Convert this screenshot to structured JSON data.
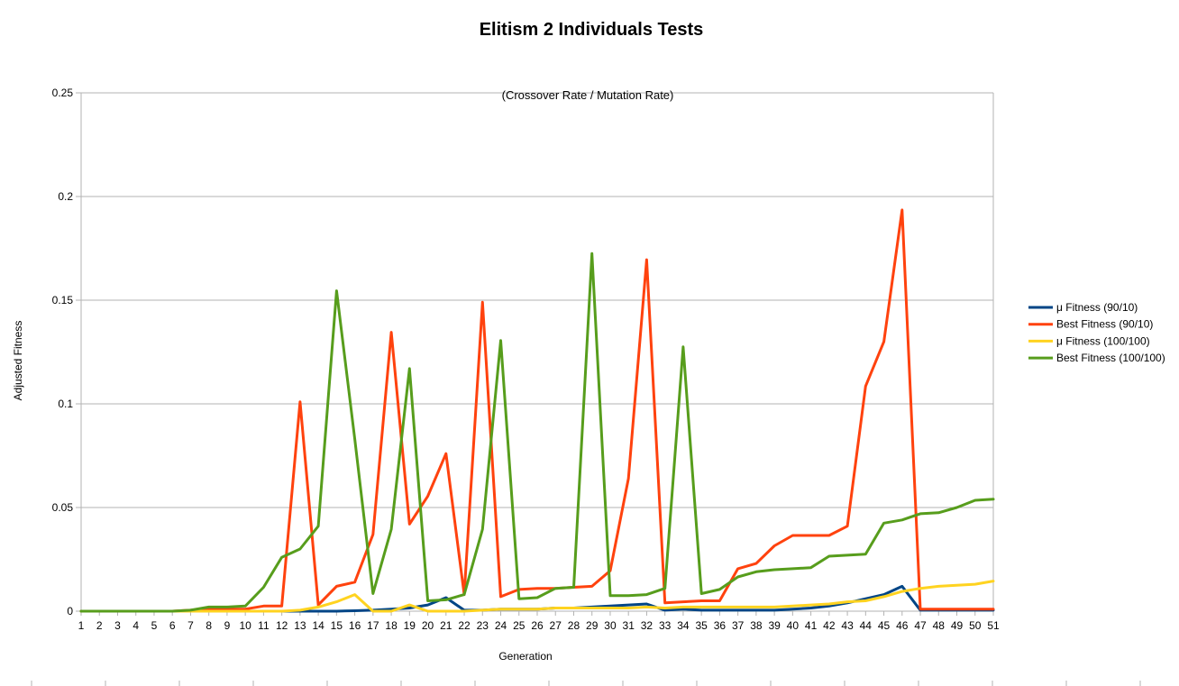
{
  "chart_data": {
    "type": "line",
    "title": "Elitism 2 Individuals Tests",
    "subtitle": "(Crossover Rate / Mutation Rate)",
    "xlabel": "Generation",
    "ylabel": "Adjusted Fitness",
    "ylim": [
      0,
      0.25
    ],
    "yticks": [
      "0",
      "0.05",
      "0.1",
      "0.15",
      "0.2",
      "0.25"
    ],
    "grid": true,
    "legend_position": "right",
    "x": [
      1,
      2,
      3,
      4,
      5,
      6,
      7,
      8,
      9,
      10,
      11,
      12,
      13,
      14,
      15,
      16,
      17,
      18,
      19,
      20,
      21,
      22,
      23,
      24,
      25,
      26,
      27,
      28,
      29,
      30,
      31,
      32,
      33,
      34,
      35,
      36,
      37,
      38,
      39,
      40,
      41,
      42,
      43,
      44,
      45,
      46,
      47,
      48,
      49,
      50,
      51
    ],
    "series": [
      {
        "name": "μ Fitness (90/10)",
        "color": "#004586",
        "values": [
          0,
          0,
          0,
          0,
          0,
          0,
          0,
          0,
          0,
          0,
          0,
          0,
          0,
          0,
          0,
          0.0002,
          0.0005,
          0.001,
          0.0015,
          0.003,
          0.0065,
          0.0005,
          0.0005,
          0.001,
          0.001,
          0.001,
          0.0015,
          0.0015,
          0.002,
          0.0025,
          0.003,
          0.0035,
          0.0005,
          0.001,
          0.0005,
          0.0005,
          0.0005,
          0.0005,
          0.0005,
          0.001,
          0.0015,
          0.0025,
          0.004,
          0.006,
          0.008,
          0.012,
          0.0005,
          0.0005,
          0.0005,
          0.0005,
          0.0005
        ]
      },
      {
        "name": "Best Fitness (90/10)",
        "color": "#ff420e",
        "values": [
          0,
          0,
          0,
          0,
          0,
          0,
          0.0005,
          0.001,
          0.001,
          0.001,
          0.0025,
          0.0025,
          0.101,
          0.003,
          0.012,
          0.014,
          0.037,
          0.1345,
          0.042,
          0.0555,
          0.076,
          0.008,
          0.149,
          0.007,
          0.0105,
          0.011,
          0.011,
          0.0115,
          0.012,
          0.0195,
          0.064,
          0.1695,
          0.004,
          0.0045,
          0.005,
          0.005,
          0.0205,
          0.023,
          0.0315,
          0.0365,
          0.0365,
          0.0365,
          0.041,
          0.1085,
          0.13,
          0.1935,
          0.001,
          0.001,
          0.001,
          0.001,
          0.001
        ]
      },
      {
        "name": "μ Fitness (100/100)",
        "color": "#ffd320",
        "values": [
          0,
          0,
          0,
          0,
          0,
          0,
          0,
          0,
          0,
          0,
          0,
          0,
          0.0005,
          0.002,
          0.0045,
          0.008,
          0,
          0,
          0.003,
          0,
          0,
          0,
          0.0005,
          0.001,
          0.001,
          0.001,
          0.0015,
          0.0015,
          0.0015,
          0.0015,
          0.0015,
          0.002,
          0.0015,
          0.002,
          0.002,
          0.002,
          0.002,
          0.002,
          0.002,
          0.0025,
          0.003,
          0.0035,
          0.0045,
          0.005,
          0.007,
          0.0095,
          0.011,
          0.012,
          0.0125,
          0.013,
          0.0145
        ]
      },
      {
        "name": "Best Fitness (100/100)",
        "color": "#579d1c",
        "values": [
          0,
          0,
          0,
          0,
          0,
          0,
          0.0005,
          0.002,
          0.002,
          0.0025,
          0.0115,
          0.026,
          0.03,
          0.041,
          0.1545,
          0.083,
          0.0085,
          0.0395,
          0.117,
          0.005,
          0.0055,
          0.008,
          0.0395,
          0.1305,
          0.006,
          0.0065,
          0.011,
          0.0115,
          0.1725,
          0.0075,
          0.0075,
          0.008,
          0.011,
          0.1275,
          0.0085,
          0.0105,
          0.0165,
          0.019,
          0.02,
          0.0205,
          0.021,
          0.0265,
          0.027,
          0.0275,
          0.0425,
          0.044,
          0.047,
          0.0475,
          0.05,
          0.0535,
          0.054
        ]
      }
    ]
  }
}
